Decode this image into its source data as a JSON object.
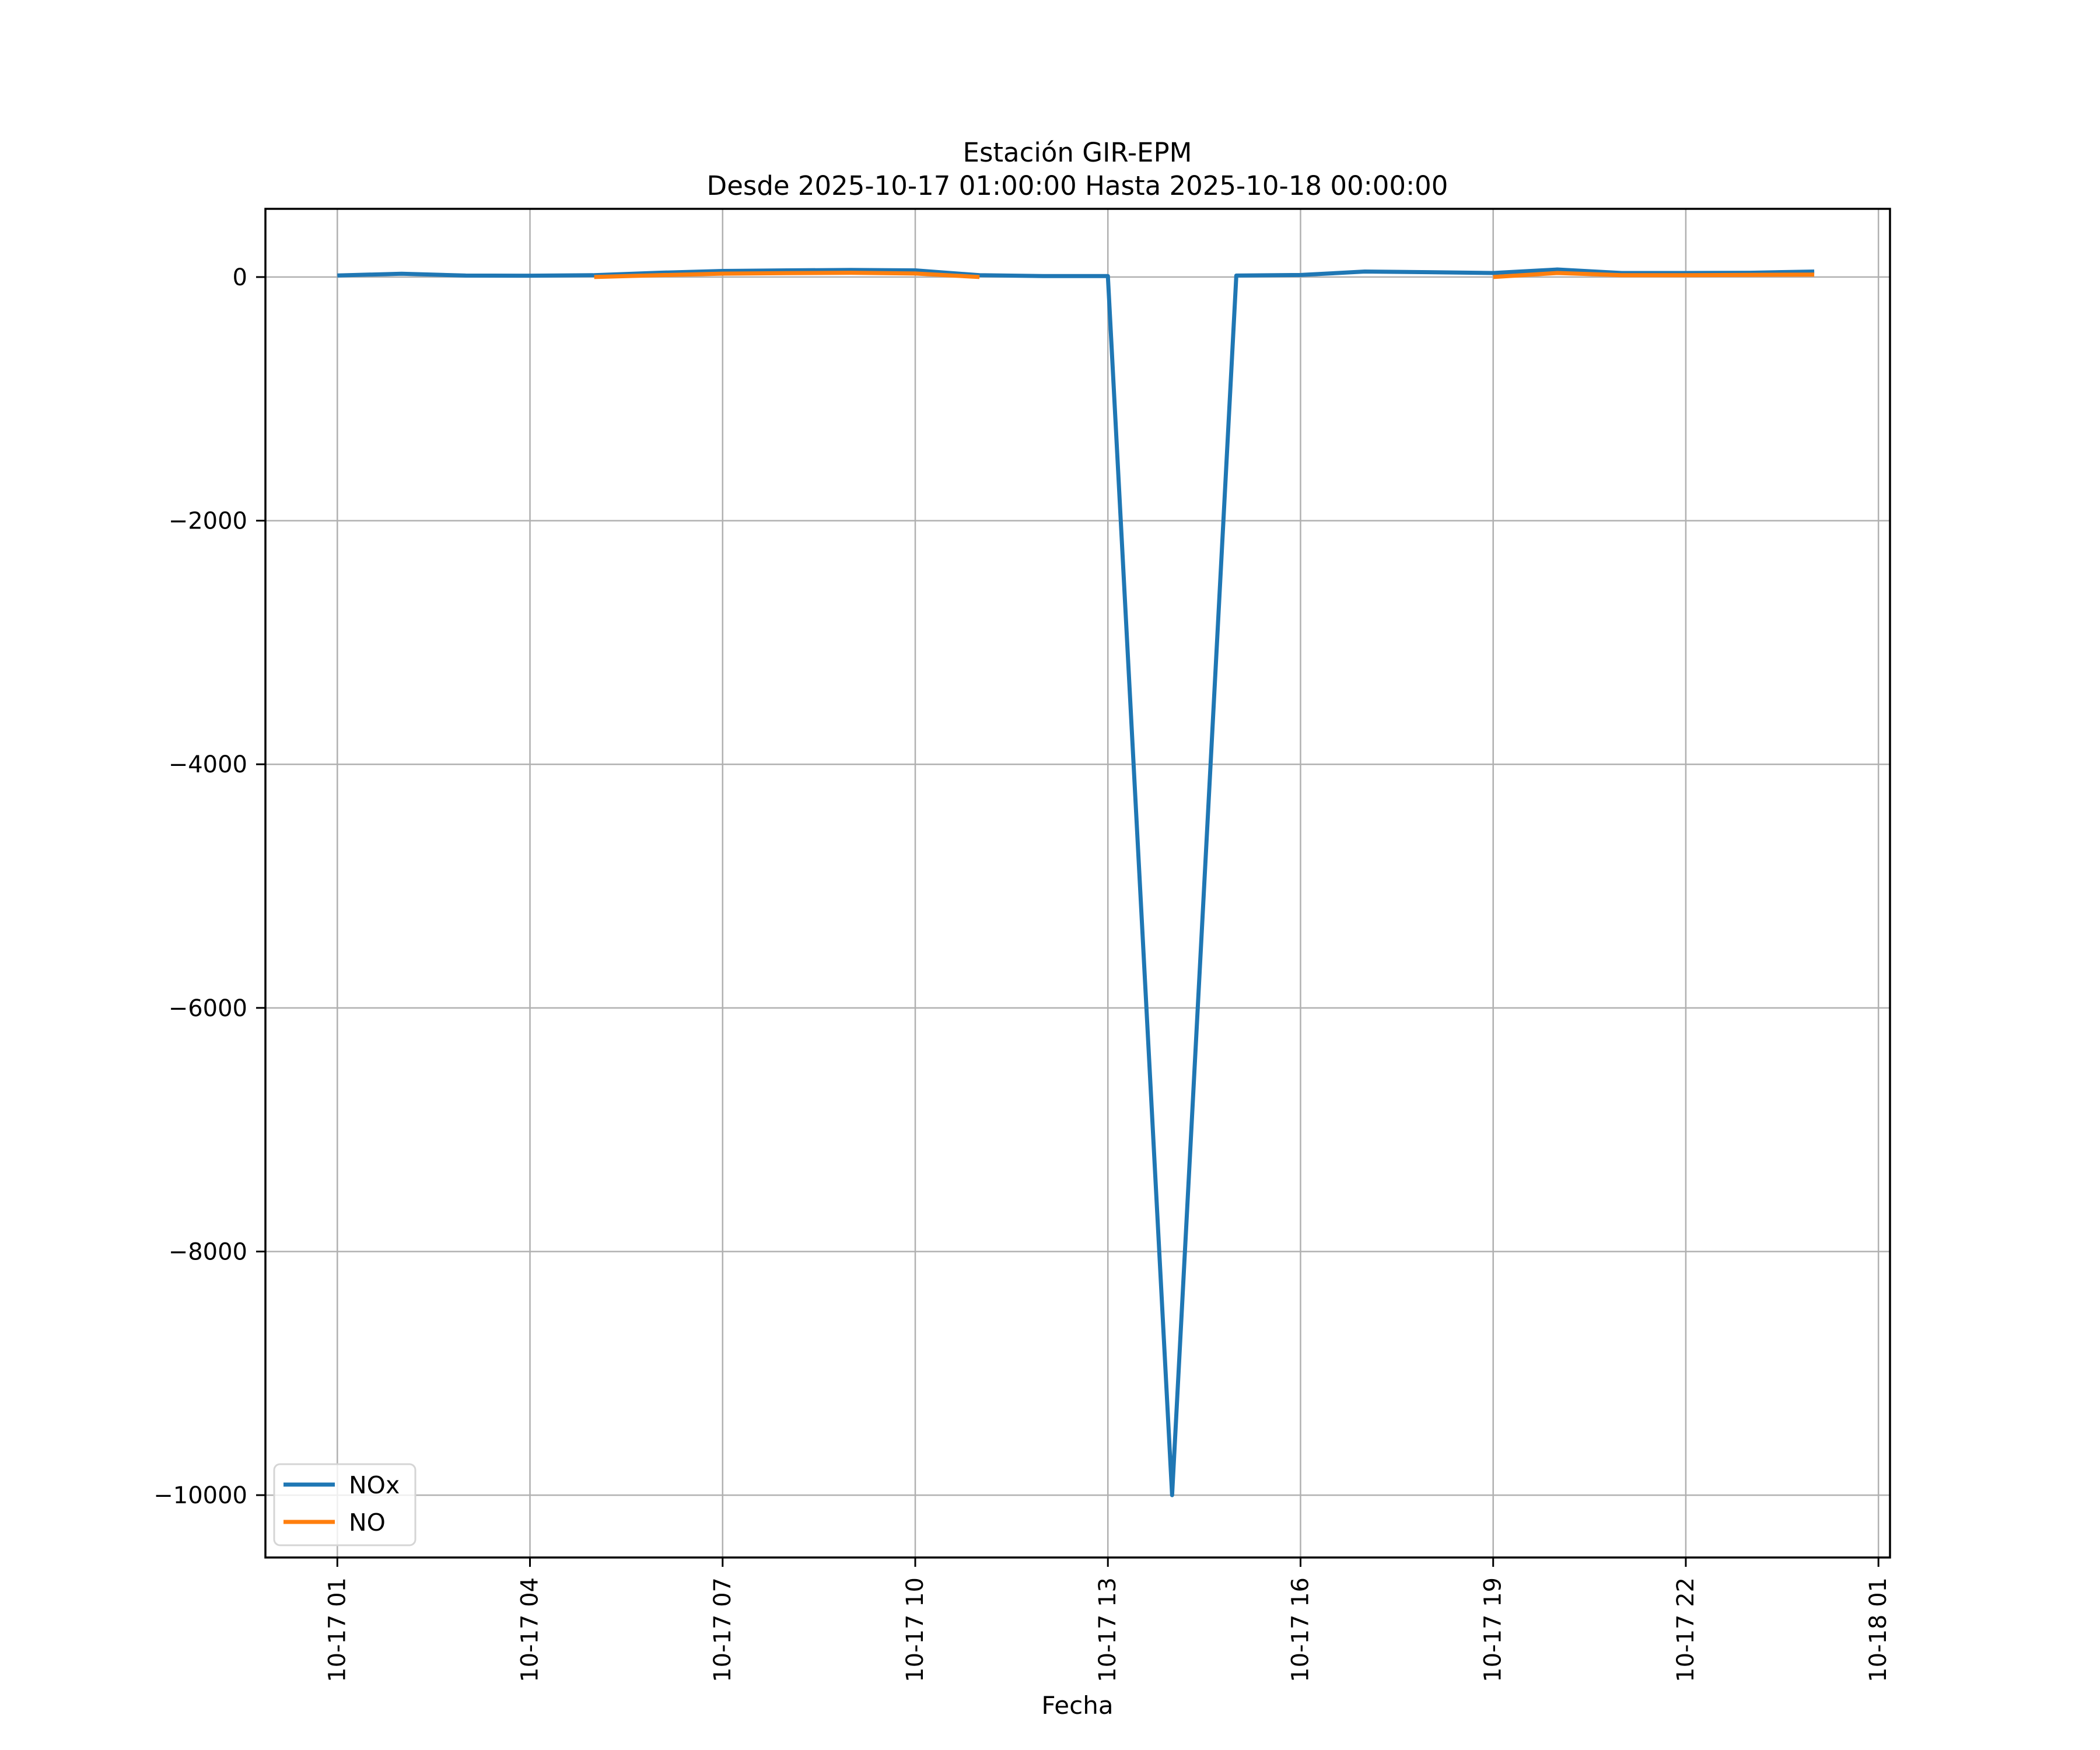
{
  "figure": {
    "background": "#ffffff"
  },
  "chart_data": {
    "type": "line",
    "title": "Estación GIR-EPM",
    "subtitle": "Desde 2025-10-17 01:00:00 Hasta 2025-10-18 00:00:00",
    "xlabel": "Fecha",
    "ylabel": "",
    "grid": true,
    "legend_position": "lower left",
    "axis_color": "#000000",
    "grid_color": "#b0b0b0",
    "xlim": [
      -0.12,
      25.18
    ],
    "ylim": [
      -10512,
      560
    ],
    "x_hours": [
      1,
      2,
      3,
      4,
      5,
      6,
      7,
      8,
      9,
      10,
      11,
      12,
      13,
      14,
      15,
      16,
      17,
      18,
      19,
      20,
      21,
      22,
      23,
      24
    ],
    "x_tick_hours": [
      1,
      4,
      7,
      10,
      13,
      16,
      19,
      22,
      25
    ],
    "x_tick_labels": [
      "10-17 01",
      "10-17 04",
      "10-17 07",
      "10-17 10",
      "10-17 13",
      "10-17 16",
      "10-17 19",
      "10-17 22",
      "10-18 01"
    ],
    "y_tick_values": [
      0,
      -2000,
      -4000,
      -6000,
      -8000,
      -10000
    ],
    "y_tick_labels": [
      "0",
      "−2000",
      "−4000",
      "−6000",
      "−8000",
      "−10000"
    ],
    "series": [
      {
        "name": "NOx",
        "color": "#1f77b4",
        "values": [
          13,
          27,
          12,
          11,
          15,
          35,
          50,
          55,
          58,
          55,
          15,
          8,
          8,
          -10000,
          12,
          17,
          45,
          40,
          33,
          62,
          33,
          33,
          35,
          45
        ]
      },
      {
        "name": "NO",
        "color": "#ff7f0e",
        "values": [
          null,
          null,
          null,
          null,
          0,
          15,
          28,
          32,
          35,
          29,
          0,
          null,
          null,
          null,
          null,
          null,
          null,
          null,
          0,
          33,
          15,
          15,
          18,
          20
        ]
      }
    ]
  }
}
